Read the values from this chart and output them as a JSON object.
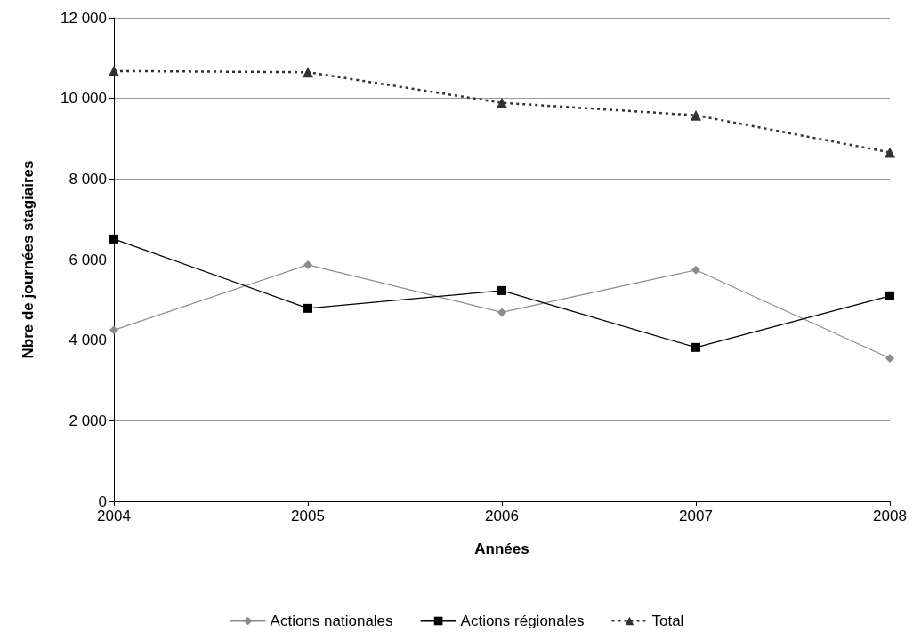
{
  "chart_data": {
    "type": "line",
    "xlabel": "Années",
    "ylabel": "Nbre de journées stagiaires",
    "categories": [
      "2004",
      "2005",
      "2006",
      "2007",
      "2008"
    ],
    "series": [
      {
        "name": "Actions nationales",
        "color": "#8c8c8c",
        "marker": "diamond",
        "line_style": "solid",
        "values": [
          4250,
          5870,
          4690,
          5740,
          3550
        ]
      },
      {
        "name": "Actions régionales",
        "color": "#000000",
        "marker": "square",
        "line_style": "solid",
        "values": [
          6510,
          4790,
          5230,
          3820,
          5100
        ]
      },
      {
        "name": "Total",
        "color": "#333333",
        "marker": "triangle",
        "line_style": "dotted",
        "values": [
          10680,
          10650,
          9890,
          9580,
          8660
        ]
      }
    ],
    "ylim": [
      0,
      12000
    ],
    "yticks": [
      {
        "value": 0,
        "label": "0"
      },
      {
        "value": 2000,
        "label": "2 000"
      },
      {
        "value": 4000,
        "label": "4 000"
      },
      {
        "value": 6000,
        "label": "6 000"
      },
      {
        "value": 8000,
        "label": "8 000"
      },
      {
        "value": 10000,
        "label": "10 000"
      },
      {
        "value": 12000,
        "label": "12 000"
      }
    ],
    "grid": "y",
    "legend": "bottom"
  }
}
